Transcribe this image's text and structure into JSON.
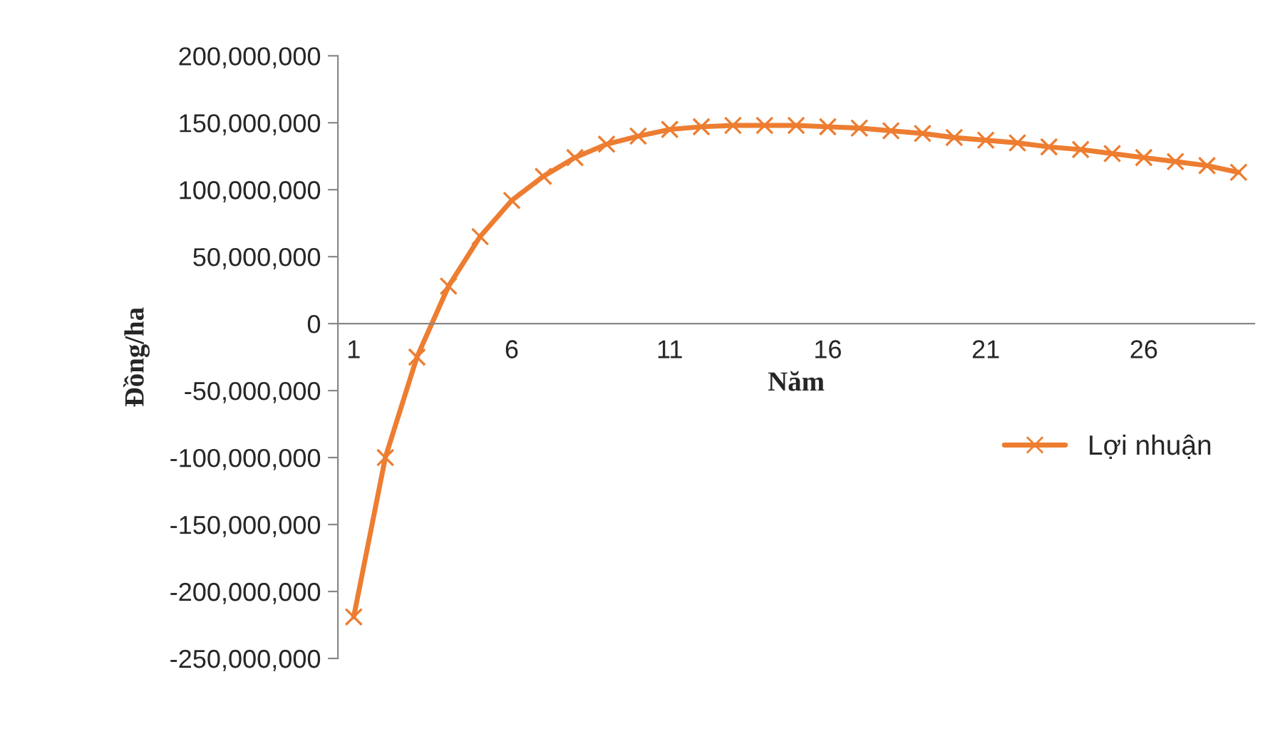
{
  "chart_data": {
    "type": "line",
    "xlabel": "Năm",
    "ylabel": "Đồng/ha",
    "categories": [
      "1",
      null,
      null,
      null,
      null,
      "6",
      null,
      null,
      null,
      null,
      "11",
      null,
      null,
      null,
      null,
      "16",
      null,
      null,
      null,
      null,
      "21",
      null,
      null,
      null,
      null,
      "26",
      null,
      null,
      null
    ],
    "series": [
      {
        "name": "Lợi nhuận",
        "color": "#ed7d31",
        "values": [
          -219000000,
          -100000000,
          -25000000,
          28000000,
          65000000,
          92000000,
          110000000,
          124000000,
          134000000,
          140000000,
          145000000,
          147000000,
          148000000,
          148000000,
          148000000,
          147000000,
          146000000,
          144000000,
          142000000,
          139000000,
          137000000,
          135000000,
          132000000,
          130000000,
          127000000,
          124000000,
          121000000,
          118000000,
          113000000
        ]
      }
    ],
    "ylim": [
      -250000000,
      200000000
    ],
    "yticks": [
      {
        "value": -250000000,
        "label": "-250,000,000"
      },
      {
        "value": -200000000,
        "label": "-200,000,000"
      },
      {
        "value": -150000000,
        "label": "-150,000,000"
      },
      {
        "value": -100000000,
        "label": "-100,000,000"
      },
      {
        "value": -50000000,
        "label": "-50,000,000"
      },
      {
        "value": 0,
        "label": "0"
      },
      {
        "value": 50000000,
        "label": "50,000,000"
      },
      {
        "value": 100000000,
        "label": "100,000,000"
      },
      {
        "value": 150000000,
        "label": "150,000,000"
      },
      {
        "value": 200000000,
        "label": "200,000,000"
      }
    ],
    "grid": false,
    "legend": "right",
    "marker": "cross",
    "line_style": "solid"
  }
}
